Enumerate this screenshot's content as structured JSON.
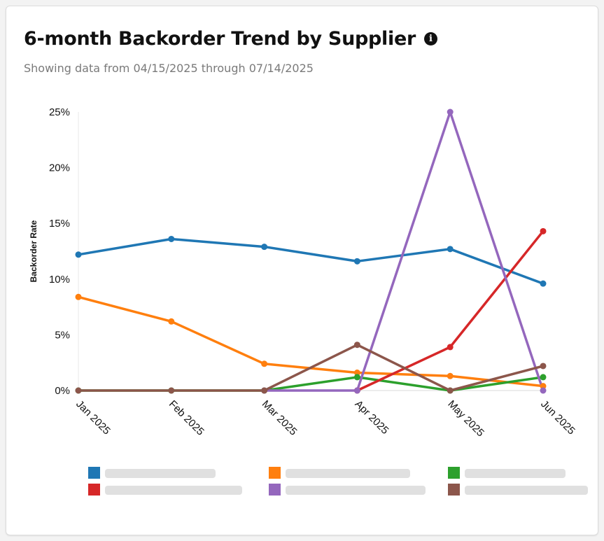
{
  "header": {
    "title": "6-month Backorder Trend by Supplier",
    "subtitle": "Showing data from 04/15/2025 through 07/14/2025",
    "info_icon": "info-icon"
  },
  "chart_data": {
    "type": "line",
    "title": "6-month Backorder Trend by Supplier",
    "xlabel": "",
    "ylabel": "Backorder Rate",
    "categories": [
      "Jan 2025",
      "Feb 2025",
      "Mar 2025",
      "Apr 2025",
      "May 2025",
      "Jun 2025"
    ],
    "y_ticks": [
      "0%",
      "5%",
      "10%",
      "15%",
      "20%",
      "25%"
    ],
    "ylim": [
      0,
      25
    ],
    "grid": false,
    "legend_position": "bottom",
    "series": [
      {
        "color": "#1f77b4",
        "values": [
          12.2,
          13.6,
          12.9,
          11.6,
          12.7,
          9.6
        ]
      },
      {
        "color": "#ff7f0e",
        "values": [
          8.4,
          6.2,
          2.4,
          1.6,
          1.3,
          0.4
        ]
      },
      {
        "color": "#2ca02c",
        "values": [
          0,
          0,
          0,
          1.2,
          0,
          1.2
        ]
      },
      {
        "color": "#d62728",
        "values": [
          null,
          null,
          null,
          0,
          3.9,
          14.3
        ]
      },
      {
        "color": "#9467bd",
        "values": [
          null,
          null,
          0,
          0,
          25,
          0
        ]
      },
      {
        "color": "#8c564b",
        "values": [
          0,
          0,
          0,
          4.1,
          0,
          2.2
        ]
      }
    ]
  }
}
